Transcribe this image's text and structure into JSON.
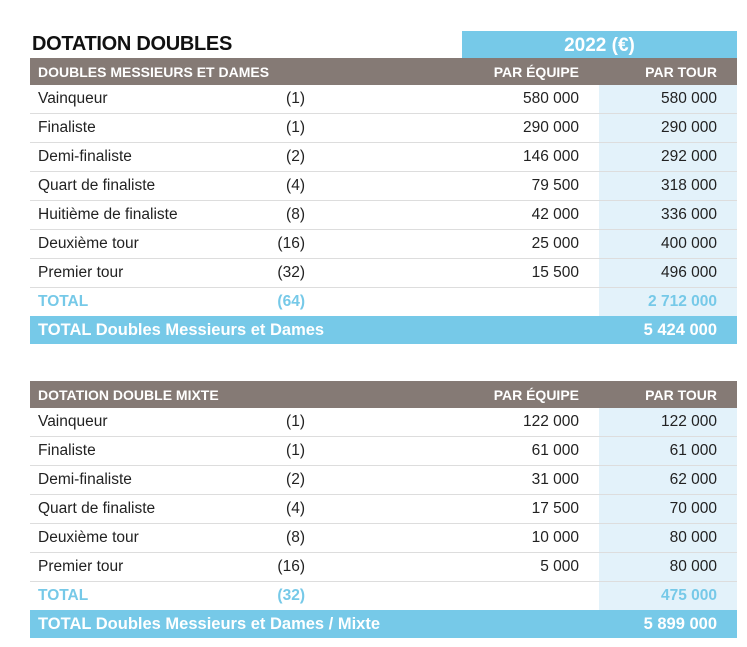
{
  "title": "DOTATION DOUBLES",
  "year_header": "2022 (€)",
  "doubles": {
    "header": {
      "label": "DOUBLES MESSIEURS ET DAMES",
      "per_team": "PAR ÉQUIPE",
      "per_round": "PAR TOUR"
    },
    "rows": [
      {
        "label": "Vainqueur",
        "count": "(1)",
        "per_team": "580 000",
        "per_round": "580 000"
      },
      {
        "label": "Finaliste",
        "count": "(1)",
        "per_team": "290 000",
        "per_round": "290 000"
      },
      {
        "label": "Demi-finaliste",
        "count": "(2)",
        "per_team": "146 000",
        "per_round": "292 000"
      },
      {
        "label": "Quart de finaliste",
        "count": "(4)",
        "per_team": "79 500",
        "per_round": "318 000"
      },
      {
        "label": "Huitième de finaliste",
        "count": "(8)",
        "per_team": "42 000",
        "per_round": "336 000"
      },
      {
        "label": "Deuxième tour",
        "count": "(16)",
        "per_team": "25 000",
        "per_round": "400 000"
      },
      {
        "label": "Premier tour",
        "count": "(32)",
        "per_team": "15 500",
        "per_round": "496 000"
      }
    ],
    "total": {
      "label": "TOTAL",
      "count": "(64)",
      "per_round": "2 712 000"
    },
    "grand_total": {
      "label": "TOTAL Doubles Messieurs et Dames",
      "value": "5 424 000"
    }
  },
  "mixed": {
    "header": {
      "label": "DOTATION DOUBLE MIXTE",
      "per_team": "PAR ÉQUIPE",
      "per_round": "PAR TOUR"
    },
    "rows": [
      {
        "label": "Vainqueur",
        "count": "(1)",
        "per_team": "122 000",
        "per_round": "122 000"
      },
      {
        "label": "Finaliste",
        "count": "(1)",
        "per_team": "61 000",
        "per_round": "61 000"
      },
      {
        "label": "Demi-finaliste",
        "count": "(2)",
        "per_team": "31 000",
        "per_round": "62 000"
      },
      {
        "label": "Quart de finaliste",
        "count": "(4)",
        "per_team": "17 500",
        "per_round": "70 000"
      },
      {
        "label": "Deuxième tour",
        "count": "(8)",
        "per_team": "10 000",
        "per_round": "80 000"
      },
      {
        "label": "Premier tour",
        "count": "(16)",
        "per_team": "5 000",
        "per_round": "80 000"
      }
    ],
    "total": {
      "label": "TOTAL",
      "count": "(32)",
      "per_round": "475 000"
    },
    "grand_total": {
      "label": "TOTAL Doubles Messieurs et Dames / Mixte",
      "value": "5 899 000"
    }
  }
}
